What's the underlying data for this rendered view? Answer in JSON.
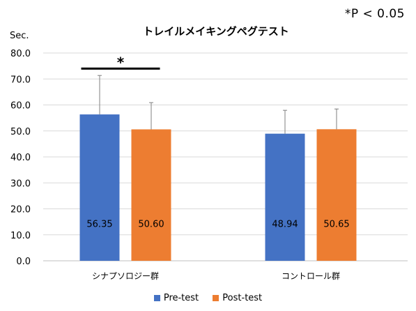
{
  "significance_note": "*P < 0.05",
  "chart_data": {
    "type": "bar",
    "title": "トレイルメイキングペグテスト",
    "ylabel": "Sec.",
    "xlabel": "",
    "ylim": [
      0,
      80
    ],
    "yticks": [
      0,
      10,
      20,
      30,
      40,
      50,
      60,
      70,
      80
    ],
    "ytick_labels": [
      "0.0",
      "10.0",
      "20.0",
      "30.0",
      "40.0",
      "50.0",
      "60.0",
      "70.0",
      "80.0"
    ],
    "grid": true,
    "legend_position": "bottom",
    "categories": [
      "シナプソロジー群",
      "コントロール群"
    ],
    "series": [
      {
        "name": "Pre-test",
        "color": "#4472C4",
        "values": [
          56.35,
          48.94
        ],
        "errors": [
          15.0,
          9.0
        ],
        "labels": [
          "56.35",
          "48.94"
        ]
      },
      {
        "name": "Post-test",
        "color": "#ED7D31",
        "values": [
          50.6,
          50.65
        ],
        "errors": [
          10.3,
          7.8
        ],
        "labels": [
          "50.60",
          "50.65"
        ]
      }
    ],
    "annotations": [
      {
        "text": "*",
        "category": 0,
        "type": "significance-bracket",
        "value": 74
      }
    ]
  }
}
